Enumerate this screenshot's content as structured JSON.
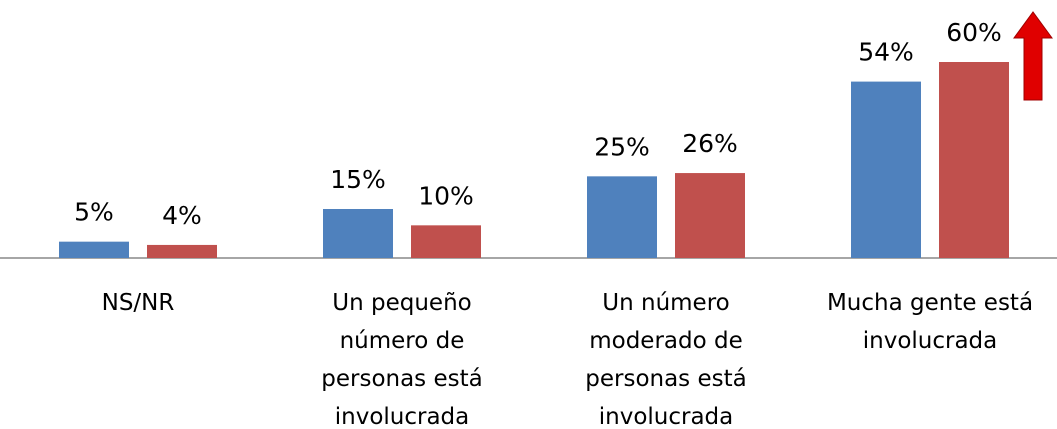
{
  "chart_data": {
    "type": "bar",
    "categories": [
      "NS/NR",
      "Un pequeño\nnúmero de\npersonas está\ninvolucrada",
      "Un número\nmoderado de\npersonas está\ninvolucrada",
      "Mucha gente está\ninvolucrada"
    ],
    "series": [
      {
        "color": "#4f81bd",
        "values": [
          5,
          15,
          25,
          54
        ],
        "value_labels": [
          "5%",
          "15%",
          "25%",
          "54%"
        ]
      },
      {
        "color": "#c0504d",
        "values": [
          4,
          10,
          26,
          60
        ],
        "value_labels": [
          "4%",
          "10%",
          "26%",
          "60%"
        ]
      }
    ],
    "ylim": [
      0,
      60
    ]
  }
}
